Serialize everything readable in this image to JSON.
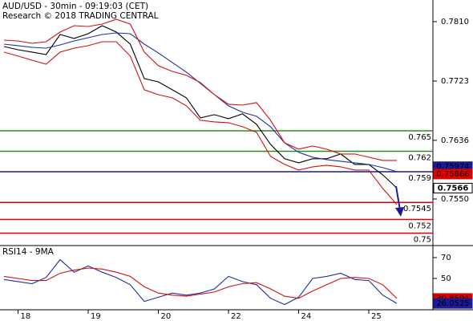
{
  "chart_data": [
    {
      "type": "line",
      "title": "AUD/USD - 30min - 09:19:03 (CET)",
      "subtitle": "Research © 2018 TRADING CENTRAL",
      "categories": [
        null,
        "18",
        null,
        null,
        null,
        null,
        "19",
        null,
        null,
        null,
        null,
        "20",
        null,
        null,
        null,
        null,
        "22",
        null,
        null,
        null,
        null,
        "24",
        null,
        null,
        null,
        null,
        "25",
        null,
        null,
        null,
        null
      ],
      "series": [
        {
          "color": "#000000",
          "values": [
            0.77736,
            0.77689,
            0.77654,
            0.77618,
            0.77912,
            0.77854,
            0.77924,
            0.78042,
            0.77948,
            0.77771,
            0.77266,
            0.77218,
            0.77101,
            0.76983,
            0.76689,
            0.76736,
            0.76678,
            0.76748,
            0.76595,
            0.76301,
            0.7609,
            0.76031,
            0.7609,
            0.7609,
            0.7616,
            0.76007,
            0.76007,
            0.75854,
            0.7566,
            null,
            null
          ]
        },
        {
          "color": "#1f2f9f",
          "values": [
            0.77771,
            0.77748,
            0.77724,
            0.77712,
            0.77759,
            0.77818,
            0.77865,
            0.77912,
            0.77936,
            0.77924,
            0.77771,
            0.77642,
            0.77501,
            0.7736,
            0.77195,
            0.7703,
            0.76866,
            0.76772,
            0.76713,
            0.7656,
            0.76325,
            0.76184,
            0.76113,
            0.76078,
            0.76054,
            0.76031,
            0.76007,
            0.7596,
            0.75901,
            null,
            null
          ]
        },
        {
          "color": "#d01010",
          "values": [
            0.7783,
            0.77818,
            0.77783,
            0.77806,
            0.77948,
            0.78042,
            0.7803,
            0.78065,
            0.78136,
            0.78065,
            0.77654,
            0.77454,
            0.77371,
            0.77313,
            0.77207,
            0.7703,
            0.76889,
            0.76877,
            0.76913,
            0.76654,
            0.76325,
            0.76231,
            0.76278,
            0.76231,
            0.7616,
            0.7616,
            0.76113,
            0.76066,
            0.76066,
            null,
            null
          ]
        },
        {
          "color": "#d01010",
          "values": [
            0.77654,
            0.77595,
            0.77536,
            0.77477,
            0.77654,
            0.77712,
            0.77748,
            0.77806,
            0.77806,
            0.77595,
            0.77101,
            0.7703,
            0.76983,
            0.76866,
            0.76654,
            0.7663,
            0.76619,
            0.7656,
            0.76478,
            0.76125,
            0.76007,
            0.75925,
            0.75972,
            0.75995,
            0.75972,
            0.75925,
            0.75925,
            0.75654,
            0.75419,
            null,
            null
          ]
        }
      ],
      "ylim": [
        0.74829,
        0.78418
      ],
      "yticks": [
        {
          "value": 0.781,
          "label": "0.7810"
        },
        0.7723,
        0.7636,
        {
          "value": 0.755,
          "label": "0.7550"
        }
      ],
      "levels": [
        {
          "value": 0.765,
          "color": "#2e8b1e"
        },
        {
          "value": 0.762,
          "color": "#2e8b1e"
        },
        {
          "value": 0.759,
          "color": "#1a1a9a"
        },
        {
          "value": 0.7545,
          "color": "#e00000"
        },
        {
          "value": 0.752,
          "color": "#e00000"
        },
        {
          "value": 0.75,
          "color": "#e00000"
        }
      ],
      "price_labels": [
        {
          "value": 0.75974,
          "color": "#1a1a9a"
        },
        {
          "value": 0.75866,
          "color": "#e00000"
        },
        {
          "value": 0.7566,
          "color": "#000000"
        }
      ]
    },
    {
      "type": "line",
      "title": "RSI14 - 9MA",
      "series": [
        {
          "color": "#1f2f9f",
          "values": [
            49,
            47,
            45,
            51,
            68,
            56,
            62,
            56,
            51,
            44,
            28,
            32,
            36,
            34,
            36,
            40,
            52,
            47,
            44,
            31,
            25,
            32,
            50,
            52,
            55,
            49,
            48,
            34,
            26.0525,
            null,
            null
          ]
        },
        {
          "color": "#d01010",
          "values": [
            52,
            50,
            48,
            48,
            55,
            58,
            60,
            59,
            56,
            52,
            42,
            36,
            34,
            33,
            35,
            37,
            42,
            45,
            46,
            40,
            33,
            31,
            38,
            44,
            50,
            51,
            50,
            44,
            30.8594,
            null,
            null
          ]
        }
      ],
      "ylim": [
        20,
        80
      ],
      "yticks": [
        70,
        50
      ],
      "price_labels": [
        {
          "value": 30.8594,
          "color": "#e00000"
        },
        {
          "value": 26.0525,
          "color": "#1a1a9a"
        }
      ]
    }
  ]
}
